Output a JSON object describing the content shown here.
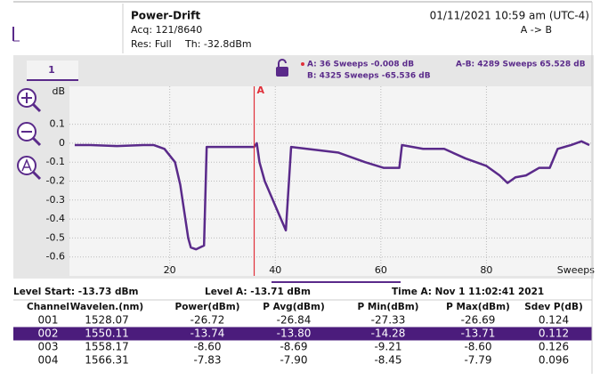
{
  "header": {
    "title": "Power-Drift",
    "acq": "Acq: 121/8640",
    "res": "Res: Full",
    "threshold": "Th: -32.8dBm",
    "datetime": "01/11/2021 10:59 am (UTC-4)",
    "mode": "A -> B"
  },
  "tab": "1",
  "markers": {
    "a": "A: 36 Sweeps -0.008 dB",
    "b": "B: 4325 Sweeps -65.536 dB",
    "ab": "A-B: 4289 Sweeps 65.528 dB"
  },
  "chart_data": {
    "type": "line",
    "ylabel": "dB",
    "xlabel": "Sweeps",
    "x": [
      2,
      5,
      10,
      15,
      17,
      19,
      21,
      22,
      23.5,
      24,
      25,
      26.5,
      27,
      28.5,
      32,
      36,
      36.5,
      37,
      38,
      42,
      43,
      46,
      52,
      57,
      60.5,
      63.5,
      64,
      68,
      72,
      76,
      80,
      82.5,
      84,
      85.5,
      87.5,
      90,
      92,
      93.5,
      96,
      98,
      99.5
    ],
    "series": [
      {
        "color": "#5a2a8a",
        "values": [
          -0.01,
          -0.01,
          -0.015,
          -0.01,
          -0.01,
          -0.03,
          -0.1,
          -0.22,
          -0.5,
          -0.55,
          -0.56,
          -0.54,
          -0.02,
          -0.02,
          -0.02,
          -0.02,
          0,
          -0.1,
          -0.2,
          -0.46,
          -0.02,
          -0.03,
          -0.05,
          -0.1,
          -0.13,
          -0.13,
          -0.01,
          -0.03,
          -0.03,
          -0.08,
          -0.12,
          -0.17,
          -0.21,
          -0.18,
          -0.17,
          -0.13,
          -0.13,
          -0.03,
          -0.01,
          0.01,
          -0.01
        ]
      }
    ],
    "xlim": [
      1,
      100
    ],
    "ylim": [
      -0.7,
      0.3
    ],
    "xticks": [
      20,
      40,
      60,
      80
    ],
    "yticks": [
      0.1,
      0,
      -0.1,
      -0.2,
      -0.3,
      -0.4,
      -0.5,
      -0.6
    ],
    "grid": true,
    "marker": {
      "label": "A",
      "x": 36,
      "color": "#e0303a"
    }
  },
  "status": {
    "level_start": "Level Start: -13.73 dBm",
    "level_a": "Level A: -13.71 dBm",
    "time_a": "Time A: Nov  1 11:02:41 2021"
  },
  "table": {
    "columns": [
      "Channel",
      "Wavelen.(nm)",
      "Power(dBm)",
      "P Avg(dBm)",
      "P Min(dBm)",
      "P Max(dBm)",
      "Sdev P(dB)"
    ],
    "rows": [
      [
        "001",
        "1528.07",
        "-26.72",
        "-26.84",
        "-27.33",
        "-26.69",
        "0.124"
      ],
      [
        "002",
        "1550.11",
        "-13.74",
        "-13.80",
        "-14.28",
        "-13.71",
        "0.112"
      ],
      [
        "003",
        "1558.17",
        "-8.60",
        "-8.69",
        "-9.21",
        "-8.60",
        "0.126"
      ],
      [
        "004",
        "1566.31",
        "-7.83",
        "-7.90",
        "-8.45",
        "-7.79",
        "0.096"
      ]
    ],
    "selected_row": 1
  }
}
